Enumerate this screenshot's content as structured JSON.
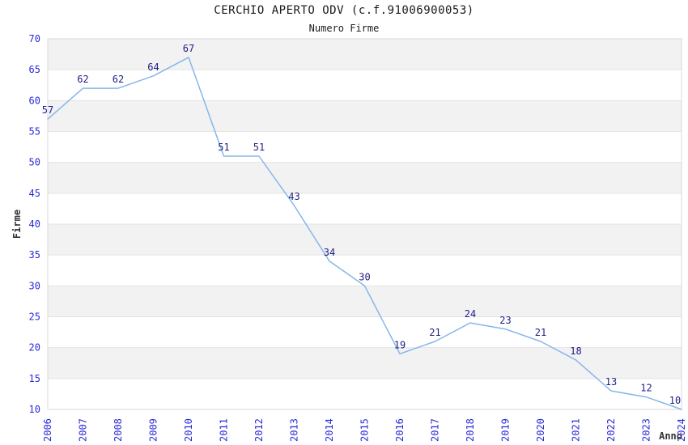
{
  "chart": {
    "title": "CERCHIO APERTO ODV (c.f.91006900053)",
    "subtitle": "Numero Firme"
  },
  "chart_data": {
    "type": "line",
    "title": "CERCHIO APERTO ODV (c.f.91006900053)",
    "subtitle": "Numero Firme",
    "x": [
      2006,
      2007,
      2008,
      2009,
      2010,
      2011,
      2012,
      2013,
      2014,
      2015,
      2016,
      2017,
      2018,
      2019,
      2020,
      2021,
      2022,
      2023,
      2024
    ],
    "series": [
      {
        "name": "Numero Firme",
        "values": [
          57,
          62,
          62,
          64,
          67,
          51,
          51,
          43,
          34,
          30,
          19,
          21,
          24,
          23,
          21,
          18,
          13,
          12,
          10
        ]
      }
    ],
    "xlabel": "Anno",
    "ylabel": "Firme",
    "ylim": [
      10,
      70
    ],
    "ytick_step": 5,
    "grid": "horizontal-only",
    "legend": "none",
    "data_labels_shown": true,
    "colors": {
      "line": "#85b7ea",
      "data_label": "#1e1e87",
      "tick_label": "#2b2bd9",
      "axis_title": "#333333",
      "band_even": "#ffffff",
      "band_odd": "#f2f2f2",
      "gridline": "#e4e4e4",
      "plot_border": "#d9d9d9"
    }
  }
}
